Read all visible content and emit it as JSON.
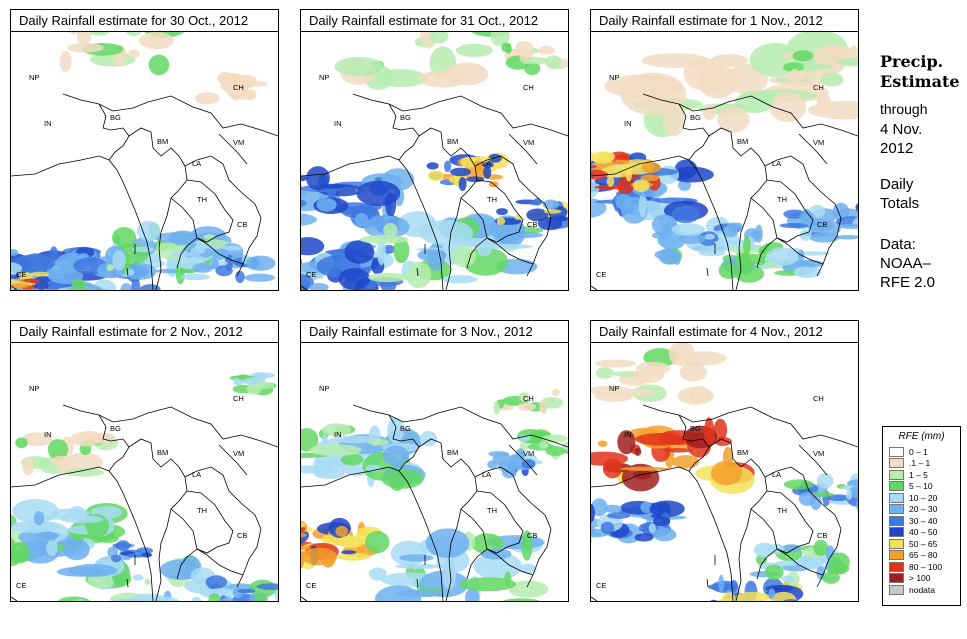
{
  "panels": [
    {
      "title": "Daily Rainfall estimate for  30 Oct., 2012"
    },
    {
      "title": "Daily Rainfall estimate for  31 Oct., 2012"
    },
    {
      "title": "Daily Rainfall estimate for  1 Nov., 2012"
    },
    {
      "title": "Daily Rainfall estimate for  2 Nov., 2012"
    },
    {
      "title": "Daily Rainfall estimate for  3 Nov., 2012"
    },
    {
      "title": "Daily Rainfall estimate for  4 Nov., 2012"
    }
  ],
  "country_labels": {
    "np": "NP",
    "ch": "CH",
    "in": "IN",
    "bg": "BG",
    "bm": "BM",
    "vm": "VM",
    "la": "LA",
    "th": "TH",
    "cb": "CB",
    "ce": "CE"
  },
  "sidebar": {
    "title_line1": "Precip.",
    "title_line2": "Estimate",
    "through": "through",
    "date_line1": "4 Nov.",
    "date_line2": "2012",
    "totals_line1": "Daily",
    "totals_line2": "Totals",
    "data_line1": "Data:",
    "data_line2": "NOAA–",
    "data_line3": "RFE 2.0"
  },
  "legend": {
    "title": "RFE (mm)",
    "items": [
      {
        "label": "0 – 1",
        "color": "#ffffff"
      },
      {
        "label": ".1 – 1",
        "color": "#f2dcc2"
      },
      {
        "label": "1 – 5",
        "color": "#b6ecb0"
      },
      {
        "label": "5 – 10",
        "color": "#62d862"
      },
      {
        "label": "10 – 20",
        "color": "#a8dcf4"
      },
      {
        "label": "20 – 30",
        "color": "#6fb0f0"
      },
      {
        "label": "30 – 40",
        "color": "#3f78e0"
      },
      {
        "label": "40 – 50",
        "color": "#1e46c8"
      },
      {
        "label": "50 – 65",
        "color": "#f4e25a"
      },
      {
        "label": "65 – 80",
        "color": "#f3a02c"
      },
      {
        "label": "80 – 100",
        "color": "#e2321a"
      },
      {
        "label": "> 100",
        "color": "#a01e1e"
      },
      {
        "label": "nodata",
        "color": "#c8c8c8"
      }
    ]
  }
}
